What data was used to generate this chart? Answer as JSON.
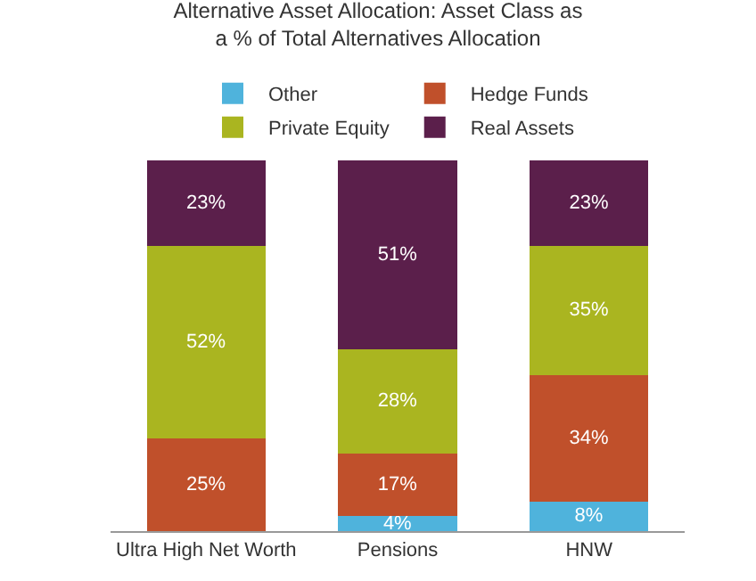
{
  "chart_data": {
    "type": "bar",
    "title": "Alternative Asset Allocation: Asset Class as\na % of Total Alternatives Allocation",
    "categories": [
      "Ultra High Net Worth",
      "Pensions",
      "HNW"
    ],
    "stacked": true,
    "legend": "top",
    "tick_labels": "x",
    "grid": false,
    "ylim": [
      0,
      100
    ],
    "series": [
      {
        "name": "Other",
        "color": "#4fb3dc",
        "values": [
          0,
          4,
          8
        ],
        "value_labels": [
          null,
          "4%",
          "8%"
        ]
      },
      {
        "name": "Hedge Funds",
        "color": "#c0502b",
        "values": [
          25,
          17,
          34
        ],
        "value_labels": [
          "25%",
          "17%",
          "34%"
        ]
      },
      {
        "name": "Private Equity",
        "color": "#aab520",
        "values": [
          52,
          28,
          35
        ],
        "value_labels": [
          "52%",
          "28%",
          "35%"
        ]
      },
      {
        "name": "Real Assets",
        "color": "#5b1f4b",
        "values": [
          23,
          51,
          23
        ],
        "value_labels": [
          "23%",
          "51%",
          "23%"
        ]
      }
    ]
  }
}
